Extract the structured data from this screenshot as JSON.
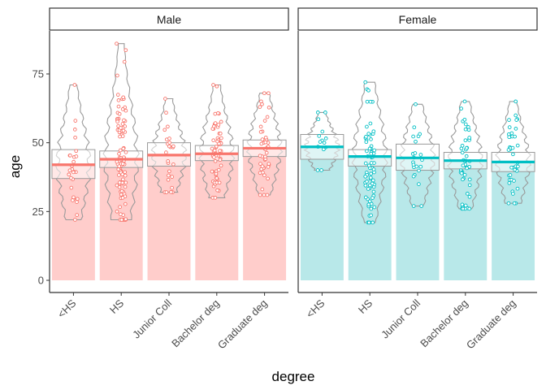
{
  "chart_data": {
    "type": "bar",
    "subtype": "pirate plot (bar + violin + jittered points + mean line + box)",
    "xlabel": "degree",
    "ylabel": "age",
    "ylim": [
      0,
      90
    ],
    "yticks": [
      0,
      25,
      50,
      75
    ],
    "grid": false,
    "facets": [
      "Male",
      "Female"
    ],
    "categories": [
      "<HS",
      "HS",
      "Junior Coll",
      "Bachelor deg",
      "Graduate deg"
    ],
    "colors": {
      "Male": "#F8766D",
      "Female": "#00BFC4"
    },
    "series": [
      {
        "name": "Male",
        "means": [
          42,
          44,
          45.5,
          46,
          48
        ],
        "box": [
          [
            37,
            47.5
          ],
          [
            41,
            47
          ],
          [
            41.5,
            50
          ],
          [
            43.5,
            49
          ],
          [
            45,
            51
          ]
        ],
        "range": [
          [
            22,
            71
          ],
          [
            22,
            86
          ],
          [
            32,
            66
          ],
          [
            30,
            71
          ],
          [
            31,
            68
          ]
        ]
      },
      {
        "name": "Female",
        "means": [
          48.5,
          45,
          44.5,
          43.5,
          43
        ],
        "box": [
          [
            44,
            53
          ],
          [
            41.5,
            47.5
          ],
          [
            40,
            49.5
          ],
          [
            40.5,
            46.5
          ],
          [
            39.5,
            46.5
          ]
        ],
        "range": [
          [
            40,
            61
          ],
          [
            21,
            72
          ],
          [
            27,
            64
          ],
          [
            26,
            65
          ],
          [
            28,
            65
          ]
        ]
      }
    ]
  }
}
